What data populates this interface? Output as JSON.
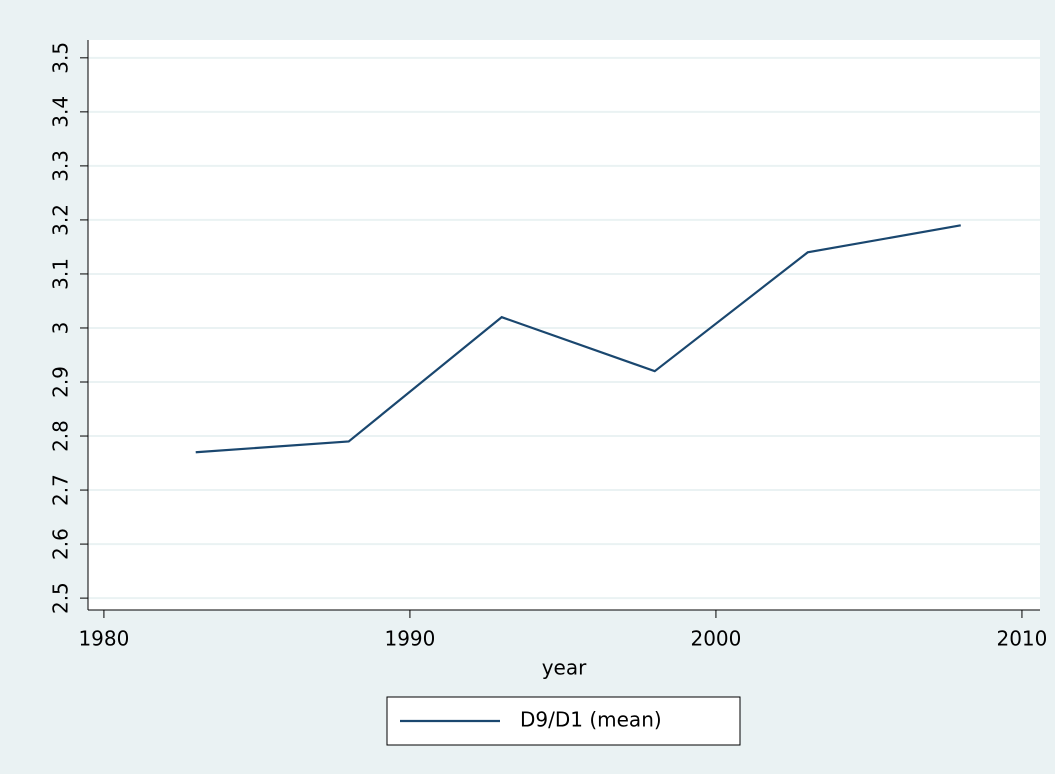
{
  "chart_data": {
    "type": "line",
    "xlabel": "year",
    "x": [
      1983,
      1988,
      1993,
      1998,
      2003,
      2008
    ],
    "series": [
      {
        "name": "D9/D1 (mean)",
        "color": "#1a476f",
        "values": [
          2.77,
          2.79,
          3.02,
          2.92,
          3.14,
          3.19
        ]
      }
    ],
    "xlim": [
      1979.48,
      2010.59
    ],
    "xticks": [
      1980,
      1990,
      2000,
      2010
    ],
    "ylim": [
      2.478,
      3.533
    ],
    "yticks": [
      2.5,
      2.6,
      2.7,
      2.8,
      2.9,
      3,
      3.1,
      3.2,
      3.3,
      3.4,
      3.5
    ],
    "grid": true,
    "legend": "bottom"
  }
}
